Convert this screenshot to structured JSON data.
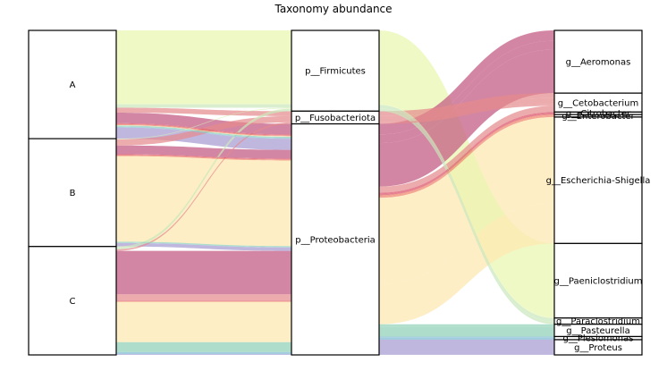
{
  "chart_data": {
    "type": "alluvial",
    "title": "Taxonomy abundance",
    "axes": [
      {
        "name": "sample",
        "nodes": [
          "A",
          "B",
          "C"
        ]
      },
      {
        "name": "phylum",
        "nodes": [
          "p__Firmicutes",
          "p__Fusobacteriota",
          "p__Proteobacteria"
        ]
      },
      {
        "name": "genus",
        "nodes": [
          "g__Aeromonas",
          "g__Cetobacterium",
          "g__Citrobacter",
          "g__Enterobacter",
          "g__Escherichia-Shigella",
          "g__Paeniclostridium",
          "g__Paraclostridium",
          "g__Pasteurella",
          "g__Plesiomonas",
          "g__Proteus"
        ]
      }
    ],
    "genus_colors": {
      "g__Aeromonas": "#c2577f",
      "g__Cetobacterium": "#e58a8e",
      "g__Citrobacter": "#d9485f",
      "g__Enterobacter": "#ef7e63",
      "g__Escherichia-Shigella": "#fee7b0",
      "g__Paeniclostridium": "#e9f7b0",
      "g__Paraclostridium": "#c9e8bd",
      "g__Pasteurella": "#8fd1b7",
      "g__Plesiomonas": "#80b8d2",
      "g__Proteus": "#a79bd1"
    },
    "flows": [
      {
        "sample": "A",
        "phylum": "p__Firmicutes",
        "genus": "g__Paeniclostridium",
        "value": 0.2275
      },
      {
        "sample": "A",
        "phylum": "p__Firmicutes",
        "genus": "g__Paraclostridium",
        "value": 0.0105
      },
      {
        "sample": "A",
        "phylum": "p__Fusobacteriota",
        "genus": "g__Cetobacterium",
        "value": 0.0153
      },
      {
        "sample": "A",
        "phylum": "p__Proteobacteria",
        "genus": "g__Aeromonas",
        "value": 0.0325
      },
      {
        "sample": "A",
        "phylum": "p__Proteobacteria",
        "genus": "g__Citrobacter",
        "value": 0.0029
      },
      {
        "sample": "A",
        "phylum": "p__Proteobacteria",
        "genus": "g__Enterobacter",
        "value": 0.0029
      },
      {
        "sample": "A",
        "phylum": "p__Proteobacteria",
        "genus": "g__Escherichia-Shigella",
        "value": 0.0013
      },
      {
        "sample": "A",
        "phylum": "p__Proteobacteria",
        "genus": "g__Pasteurella",
        "value": 0.004
      },
      {
        "sample": "A",
        "phylum": "p__Proteobacteria",
        "genus": "g__Plesiomonas",
        "value": 0.002
      },
      {
        "sample": "A",
        "phylum": "p__Proteobacteria",
        "genus": "g__Proteus",
        "value": 0.0344
      },
      {
        "sample": "B",
        "phylum": "p__Firmicutes",
        "genus": "g__Paeniclostridium",
        "value": 0.001
      },
      {
        "sample": "B",
        "phylum": "p__Firmicutes",
        "genus": "g__Paraclostridium",
        "value": 0.001
      },
      {
        "sample": "B",
        "phylum": "p__Fusobacteriota",
        "genus": "g__Cetobacterium",
        "value": 0.0191
      },
      {
        "sample": "B",
        "phylum": "p__Proteobacteria",
        "genus": "g__Aeromonas",
        "value": 0.0267
      },
      {
        "sample": "B",
        "phylum": "p__Proteobacteria",
        "genus": "g__Citrobacter",
        "value": 0.0029
      },
      {
        "sample": "B",
        "phylum": "p__Proteobacteria",
        "genus": "g__Enterobacter",
        "value": 0.0029
      },
      {
        "sample": "B",
        "phylum": "p__Proteobacteria",
        "genus": "g__Escherichia-Shigella",
        "value": 0.2636
      },
      {
        "sample": "B",
        "phylum": "p__Proteobacteria",
        "genus": "g__Pasteurella",
        "value": 0.0033
      },
      {
        "sample": "B",
        "phylum": "p__Proteobacteria",
        "genus": "g__Plesiomonas",
        "value": 0.001
      },
      {
        "sample": "B",
        "phylum": "p__Proteobacteria",
        "genus": "g__Proteus",
        "value": 0.0105
      },
      {
        "sample": "C",
        "phylum": "p__Firmicutes",
        "genus": "g__Paeniclostridium",
        "value": 0.001
      },
      {
        "sample": "C",
        "phylum": "p__Firmicutes",
        "genus": "g__Paraclostridium",
        "value": 0.0076
      },
      {
        "sample": "C",
        "phylum": "p__Fusobacteriota",
        "genus": "g__Cetobacterium",
        "value": 0.0048
      },
      {
        "sample": "C",
        "phylum": "p__Proteobacteria",
        "genus": "g__Aeromonas",
        "value": 0.1339
      },
      {
        "sample": "C",
        "phylum": "p__Proteobacteria",
        "genus": "g__Cetobacterium",
        "value": 0.0191
      },
      {
        "sample": "C",
        "phylum": "p__Proteobacteria",
        "genus": "g__Citrobacter",
        "value": 0.0019
      },
      {
        "sample": "C",
        "phylum": "p__Proteobacteria",
        "genus": "g__Enterobacter",
        "value": 0.0019
      },
      {
        "sample": "C",
        "phylum": "p__Proteobacteria",
        "genus": "g__Escherichia-Shigella",
        "value": 0.1243
      },
      {
        "sample": "C",
        "phylum": "p__Proteobacteria",
        "genus": "g__Pasteurella",
        "value": 0.0306
      },
      {
        "sample": "C",
        "phylum": "p__Proteobacteria",
        "genus": "g__Plesiomonas",
        "value": 0.0067
      },
      {
        "sample": "C",
        "phylum": "p__Proteobacteria",
        "genus": "g__Proteus",
        "value": 0.0019
      }
    ]
  }
}
